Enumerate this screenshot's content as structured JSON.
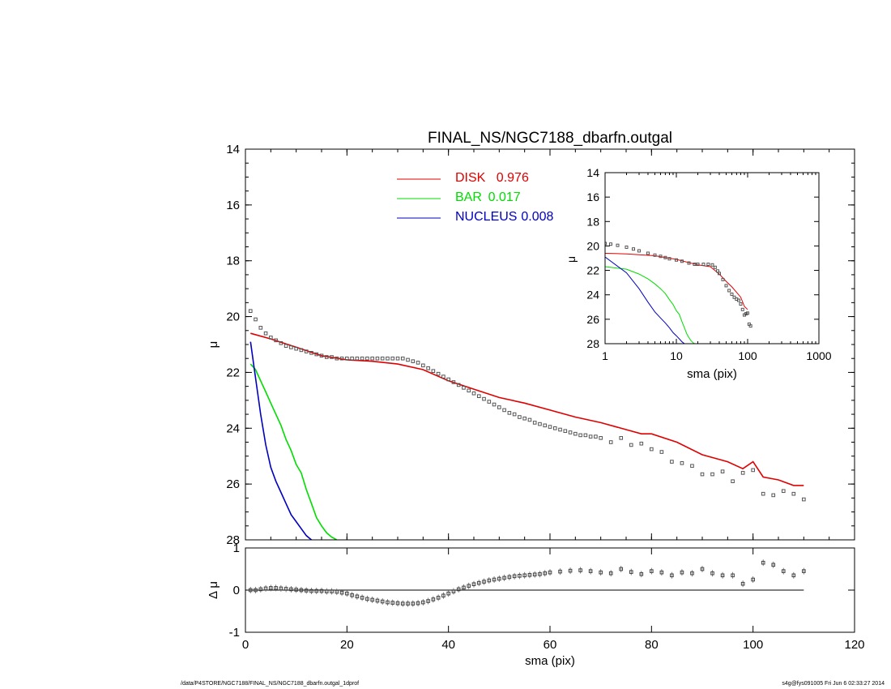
{
  "chart_data": [
    {
      "id": "main",
      "type": "line",
      "title": "FINAL_NS/NGC7188_dbarfn.outgal",
      "xlabel": "",
      "ylabel": "μ",
      "xlim": [
        0,
        120
      ],
      "ylim": [
        28,
        14
      ],
      "yticks": [
        14,
        16,
        18,
        20,
        22,
        24,
        26,
        28
      ],
      "legend_position": "top-center",
      "legend": [
        {
          "name": "DISK",
          "value": "0.976",
          "color": "#e00000"
        },
        {
          "name": "BAR",
          "value": "0.017",
          "color": "#00dd00"
        },
        {
          "name": "NUCLEUS",
          "value": "0.008",
          "color": "#0000c0"
        }
      ],
      "series": [
        {
          "name": "DISK",
          "color": "#e00000",
          "style": "line",
          "x": [
            1,
            5,
            10,
            15,
            20,
            25,
            30,
            35,
            40,
            45,
            50,
            55,
            60,
            65,
            70,
            75,
            78,
            80,
            85,
            90,
            95,
            98,
            100,
            102,
            105,
            108,
            110
          ],
          "y": [
            20.6,
            20.8,
            21.1,
            21.4,
            21.55,
            21.6,
            21.7,
            21.9,
            22.3,
            22.6,
            22.9,
            23.1,
            23.35,
            23.6,
            23.8,
            24.05,
            24.2,
            24.2,
            24.5,
            24.95,
            25.2,
            25.45,
            25.2,
            25.75,
            25.85,
            26.05,
            26.05
          ]
        },
        {
          "name": "BAR",
          "color": "#00dd00",
          "style": "line",
          "x": [
            1,
            2,
            3,
            4,
            5,
            6,
            7,
            8,
            9,
            10,
            11,
            12,
            13,
            14,
            15,
            16,
            17,
            18
          ],
          "y": [
            21.7,
            21.9,
            22.3,
            22.7,
            23.1,
            23.5,
            23.9,
            24.4,
            24.8,
            25.3,
            25.6,
            26.2,
            26.7,
            27.2,
            27.5,
            27.75,
            27.9,
            28
          ]
        },
        {
          "name": "NUCLEUS",
          "color": "#0000c0",
          "style": "line",
          "x": [
            1,
            2,
            3,
            4,
            5,
            6,
            7,
            8,
            9,
            10,
            11,
            12,
            13
          ],
          "y": [
            20.9,
            22.2,
            23.5,
            24.6,
            25.4,
            25.9,
            26.3,
            26.7,
            27.1,
            27.35,
            27.6,
            27.85,
            28
          ]
        },
        {
          "name": "",
          "color": "#555555",
          "style": "points",
          "x": [
            1,
            2,
            3,
            4,
            5,
            6,
            7,
            8,
            9,
            10,
            11,
            12,
            13,
            14,
            15,
            16,
            17,
            18,
            19,
            20,
            21,
            22,
            23,
            24,
            25,
            26,
            27,
            28,
            29,
            30,
            31,
            32,
            33,
            34,
            35,
            36,
            37,
            38,
            39,
            40,
            41,
            42,
            43,
            44,
            45,
            46,
            47,
            48,
            49,
            50,
            51,
            52,
            53,
            54,
            55,
            56,
            57,
            58,
            59,
            60,
            61,
            62,
            63,
            64,
            65,
            66,
            67,
            68,
            69,
            70,
            72,
            74,
            76,
            78,
            80,
            82,
            84,
            86,
            88,
            90,
            92,
            94,
            96,
            98,
            100,
            102,
            104,
            106,
            108,
            110
          ],
          "y": [
            19.8,
            20.1,
            20.4,
            20.6,
            20.75,
            20.85,
            20.95,
            21.05,
            21.1,
            21.15,
            21.2,
            21.25,
            21.3,
            21.35,
            21.4,
            21.45,
            21.45,
            21.5,
            21.5,
            21.5,
            21.5,
            21.5,
            21.5,
            21.5,
            21.5,
            21.5,
            21.5,
            21.5,
            21.5,
            21.5,
            21.5,
            21.55,
            21.6,
            21.65,
            21.75,
            21.85,
            21.95,
            22.05,
            22.15,
            22.25,
            22.35,
            22.45,
            22.55,
            22.65,
            22.75,
            22.85,
            22.95,
            23.05,
            23.15,
            23.25,
            23.35,
            23.45,
            23.5,
            23.6,
            23.65,
            23.7,
            23.8,
            23.85,
            23.9,
            23.95,
            24.0,
            24.05,
            24.1,
            24.15,
            24.2,
            24.25,
            24.25,
            24.3,
            24.3,
            24.35,
            24.5,
            24.35,
            24.6,
            24.55,
            24.75,
            24.85,
            25.2,
            25.25,
            25.35,
            25.65,
            25.65,
            25.55,
            25.9,
            25.6,
            25.5,
            26.35,
            26.4,
            26.25,
            26.35,
            26.55
          ]
        }
      ]
    },
    {
      "id": "residual",
      "type": "scatter",
      "title": "",
      "xlabel": "sma (pix)",
      "ylabel": "Δ μ",
      "xlim": [
        0,
        120
      ],
      "ylim": [
        -1,
        1
      ],
      "xticks": [
        0,
        20,
        40,
        60,
        80,
        100,
        120
      ],
      "yticks": [
        -1,
        0,
        1
      ],
      "zero_line": true,
      "series": [
        {
          "name": "",
          "color": "#444444",
          "x": [
            1,
            2,
            3,
            4,
            5,
            6,
            7,
            8,
            9,
            10,
            11,
            12,
            13,
            14,
            15,
            16,
            17,
            18,
            19,
            20,
            21,
            22,
            23,
            24,
            25,
            26,
            27,
            28,
            29,
            30,
            31,
            32,
            33,
            34,
            35,
            36,
            37,
            38,
            39,
            40,
            41,
            42,
            43,
            44,
            45,
            46,
            47,
            48,
            49,
            50,
            51,
            52,
            53,
            54,
            55,
            56,
            57,
            58,
            59,
            60,
            62,
            64,
            66,
            68,
            70,
            72,
            74,
            76,
            78,
            80,
            82,
            84,
            86,
            88,
            90,
            92,
            94,
            96,
            98,
            100,
            102,
            104,
            106,
            108,
            110
          ],
          "y": [
            0.0,
            0.0,
            0.02,
            0.04,
            0.05,
            0.05,
            0.04,
            0.03,
            0.02,
            0.01,
            0.0,
            -0.01,
            -0.02,
            -0.02,
            -0.02,
            -0.03,
            -0.03,
            -0.04,
            -0.06,
            -0.08,
            -0.12,
            -0.15,
            -0.18,
            -0.21,
            -0.23,
            -0.25,
            -0.27,
            -0.29,
            -0.3,
            -0.31,
            -0.32,
            -0.32,
            -0.32,
            -0.31,
            -0.29,
            -0.26,
            -0.22,
            -0.18,
            -0.13,
            -0.08,
            -0.03,
            0.02,
            0.06,
            0.1,
            0.14,
            0.17,
            0.2,
            0.23,
            0.25,
            0.27,
            0.29,
            0.31,
            0.33,
            0.34,
            0.35,
            0.36,
            0.37,
            0.38,
            0.4,
            0.42,
            0.44,
            0.46,
            0.47,
            0.45,
            0.42,
            0.4,
            0.5,
            0.43,
            0.38,
            0.45,
            0.42,
            0.35,
            0.42,
            0.4,
            0.5,
            0.4,
            0.35,
            0.35,
            0.15,
            0.25,
            0.65,
            0.6,
            0.45,
            0.35,
            0.45
          ]
        }
      ]
    },
    {
      "id": "inset",
      "type": "line",
      "title": "",
      "xlabel": "sma (pix)",
      "ylabel": "μ",
      "xscale": "log",
      "xlim": [
        1,
        1000
      ],
      "ylim": [
        28,
        14
      ],
      "xticks": [
        1,
        10,
        100,
        1000
      ],
      "yticks": [
        14,
        16,
        18,
        20,
        22,
        24,
        26,
        28
      ],
      "series": [
        {
          "name": "DISK",
          "color": "#e00000",
          "style": "line",
          "x": [
            1,
            2,
            5,
            10,
            20,
            30,
            40,
            50,
            60,
            70,
            80,
            90,
            100
          ],
          "y": [
            20.6,
            20.65,
            20.8,
            21.1,
            21.55,
            21.7,
            22.3,
            22.9,
            23.35,
            23.8,
            24.2,
            24.95,
            25.2
          ]
        },
        {
          "name": "BAR",
          "color": "#00dd00",
          "style": "line",
          "x": [
            1,
            2,
            3,
            4,
            5,
            6,
            7,
            8,
            9,
            10,
            11,
            12,
            13,
            14,
            15,
            16,
            17,
            18
          ],
          "y": [
            21.7,
            21.9,
            22.3,
            22.7,
            23.1,
            23.5,
            23.9,
            24.4,
            24.8,
            25.3,
            25.6,
            26.2,
            26.7,
            27.2,
            27.5,
            27.75,
            27.9,
            28
          ]
        },
        {
          "name": "NUCLEUS",
          "color": "#0000c0",
          "style": "line",
          "x": [
            1,
            2,
            3,
            4,
            5,
            6,
            7,
            8,
            9,
            10,
            11,
            12,
            13
          ],
          "y": [
            20.9,
            22.2,
            23.5,
            24.6,
            25.4,
            25.9,
            26.3,
            26.7,
            27.1,
            27.35,
            27.6,
            27.85,
            28
          ]
        },
        {
          "name": "",
          "color": "#555555",
          "style": "points",
          "x": [
            1,
            1.2,
            1.5,
            2,
            2.5,
            3,
            4,
            5,
            6,
            7,
            8,
            10,
            12,
            15,
            18,
            20,
            24,
            28,
            32,
            35,
            38,
            40,
            45,
            50,
            55,
            60,
            65,
            70,
            75,
            80,
            85,
            90,
            95,
            100,
            105,
            110
          ],
          "y": [
            19.8,
            19.85,
            19.95,
            20.1,
            20.25,
            20.4,
            20.6,
            20.75,
            20.85,
            20.95,
            21.05,
            21.15,
            21.25,
            21.4,
            21.5,
            21.5,
            21.5,
            21.5,
            21.55,
            21.75,
            22.05,
            22.25,
            22.75,
            23.25,
            23.65,
            23.95,
            24.2,
            24.35,
            24.45,
            24.75,
            25.2,
            25.65,
            25.55,
            25.5,
            26.4,
            26.55
          ]
        }
      ]
    }
  ],
  "footer": {
    "left": "/data/P4STORE/NGC7188/FINAL_NS/NGC7188_dbarfn.outgal_1dprof",
    "right": "s4g@fys091005  Fri Jun  6 02:33:27 2014"
  }
}
